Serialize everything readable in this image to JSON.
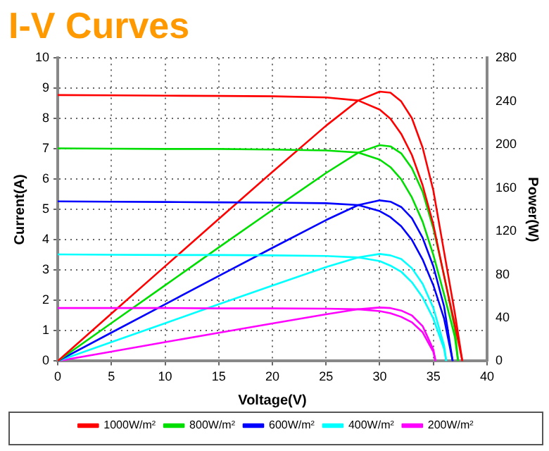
{
  "chart_data": {
    "type": "line",
    "title": "I-V Curves",
    "xlabel": "Voltage(V)",
    "ylabel": "Current(A)",
    "y2label": "Power(W)",
    "xlim": [
      0,
      40
    ],
    "xticks": [
      0,
      5,
      10,
      15,
      20,
      25,
      30,
      35,
      40
    ],
    "ylim": [
      0,
      10
    ],
    "yticks": [
      0,
      1,
      2,
      3,
      4,
      5,
      6,
      7,
      8,
      9,
      10
    ],
    "y2lim": [
      0,
      280
    ],
    "y2ticks": [
      0,
      40,
      80,
      120,
      160,
      200,
      240,
      280
    ],
    "grid": true,
    "legend": "bottom",
    "marker": "none",
    "line_style": "solid",
    "series": [
      {
        "name": "1000W/m²",
        "color": "#ff0000",
        "x": [
          0,
          5,
          10,
          15,
          20,
          25,
          28,
          30,
          31,
          32,
          33,
          34,
          35,
          36,
          37,
          37.7
        ],
        "values": [
          8.78,
          8.77,
          8.76,
          8.75,
          8.74,
          8.7,
          8.6,
          8.3,
          8.0,
          7.5,
          6.8,
          5.8,
          4.5,
          2.8,
          1.2,
          0
        ]
      },
      {
        "name": "800W/m²",
        "color": "#00dd00",
        "x": [
          0,
          5,
          10,
          15,
          20,
          25,
          28,
          30,
          31,
          32,
          33,
          34,
          35,
          36,
          37,
          37.3
        ],
        "values": [
          7.02,
          7.01,
          7.0,
          7.0,
          6.98,
          6.95,
          6.88,
          6.65,
          6.4,
          6.0,
          5.4,
          4.6,
          3.5,
          2.2,
          0.8,
          0
        ]
      },
      {
        "name": "600W/m²",
        "color": "#0000ff",
        "x": [
          0,
          5,
          10,
          15,
          20,
          25,
          28,
          30,
          31,
          32,
          33,
          34,
          35,
          36,
          36.8
        ],
        "values": [
          5.27,
          5.26,
          5.25,
          5.24,
          5.23,
          5.21,
          5.15,
          4.95,
          4.75,
          4.45,
          4.0,
          3.35,
          2.5,
          1.4,
          0
        ]
      },
      {
        "name": "400W/m²",
        "color": "#00ffff",
        "x": [
          0,
          5,
          10,
          15,
          20,
          25,
          28,
          30,
          31,
          32,
          33,
          34,
          35,
          36,
          36.2
        ],
        "values": [
          3.52,
          3.51,
          3.5,
          3.5,
          3.49,
          3.47,
          3.42,
          3.3,
          3.15,
          2.95,
          2.6,
          2.1,
          1.4,
          0.4,
          0
        ]
      },
      {
        "name": "200W/m²",
        "color": "#ff00ff",
        "x": [
          0,
          5,
          10,
          15,
          20,
          25,
          28,
          30,
          31,
          32,
          33,
          34,
          35,
          35.2
        ],
        "values": [
          1.75,
          1.75,
          1.75,
          1.74,
          1.74,
          1.73,
          1.71,
          1.65,
          1.58,
          1.46,
          1.28,
          0.95,
          0.3,
          0
        ]
      },
      {
        "color": "#ff0000",
        "axis": "y2",
        "x": [
          0,
          5,
          10,
          15,
          20,
          25,
          28,
          30,
          31,
          32,
          33,
          34,
          35,
          36,
          37,
          37.7
        ],
        "values": [
          0,
          43.9,
          87.6,
          131.3,
          174.8,
          217.5,
          240.8,
          249,
          248,
          240,
          224.4,
          197.2,
          157.5,
          100.8,
          44.4,
          0
        ]
      },
      {
        "color": "#00dd00",
        "axis": "y2",
        "x": [
          0,
          5,
          10,
          15,
          20,
          25,
          28,
          30,
          31,
          32,
          33,
          34,
          35,
          36,
          37,
          37.3
        ],
        "values": [
          0,
          35.1,
          70,
          105,
          139.6,
          173.8,
          192.6,
          199.5,
          198.4,
          192,
          178.2,
          156.4,
          122.5,
          79.2,
          29.6,
          0
        ]
      },
      {
        "color": "#0000ff",
        "axis": "y2",
        "x": [
          0,
          5,
          10,
          15,
          20,
          25,
          28,
          30,
          31,
          32,
          33,
          34,
          35,
          36,
          36.8
        ],
        "values": [
          0,
          26.3,
          52.5,
          78.6,
          104.6,
          130.3,
          144.2,
          148.5,
          147.3,
          142.4,
          132,
          113.9,
          87.5,
          50.4,
          0
        ]
      },
      {
        "color": "#00ffff",
        "axis": "y2",
        "x": [
          0,
          5,
          10,
          15,
          20,
          25,
          28,
          30,
          31,
          32,
          33,
          34,
          35,
          36,
          36.2
        ],
        "values": [
          0,
          17.55,
          35,
          52.5,
          69.8,
          86.8,
          95.8,
          99,
          97.7,
          94.4,
          85.8,
          71.4,
          49,
          14.4,
          0
        ]
      },
      {
        "color": "#ff00ff",
        "axis": "y2",
        "x": [
          0,
          5,
          10,
          15,
          20,
          25,
          28,
          30,
          31,
          32,
          33,
          34,
          35,
          35.2
        ],
        "values": [
          0,
          8.75,
          17.5,
          26.1,
          34.8,
          43.25,
          47.9,
          49.5,
          49,
          46.7,
          42.2,
          32.3,
          10.5,
          0
        ]
      }
    ]
  }
}
